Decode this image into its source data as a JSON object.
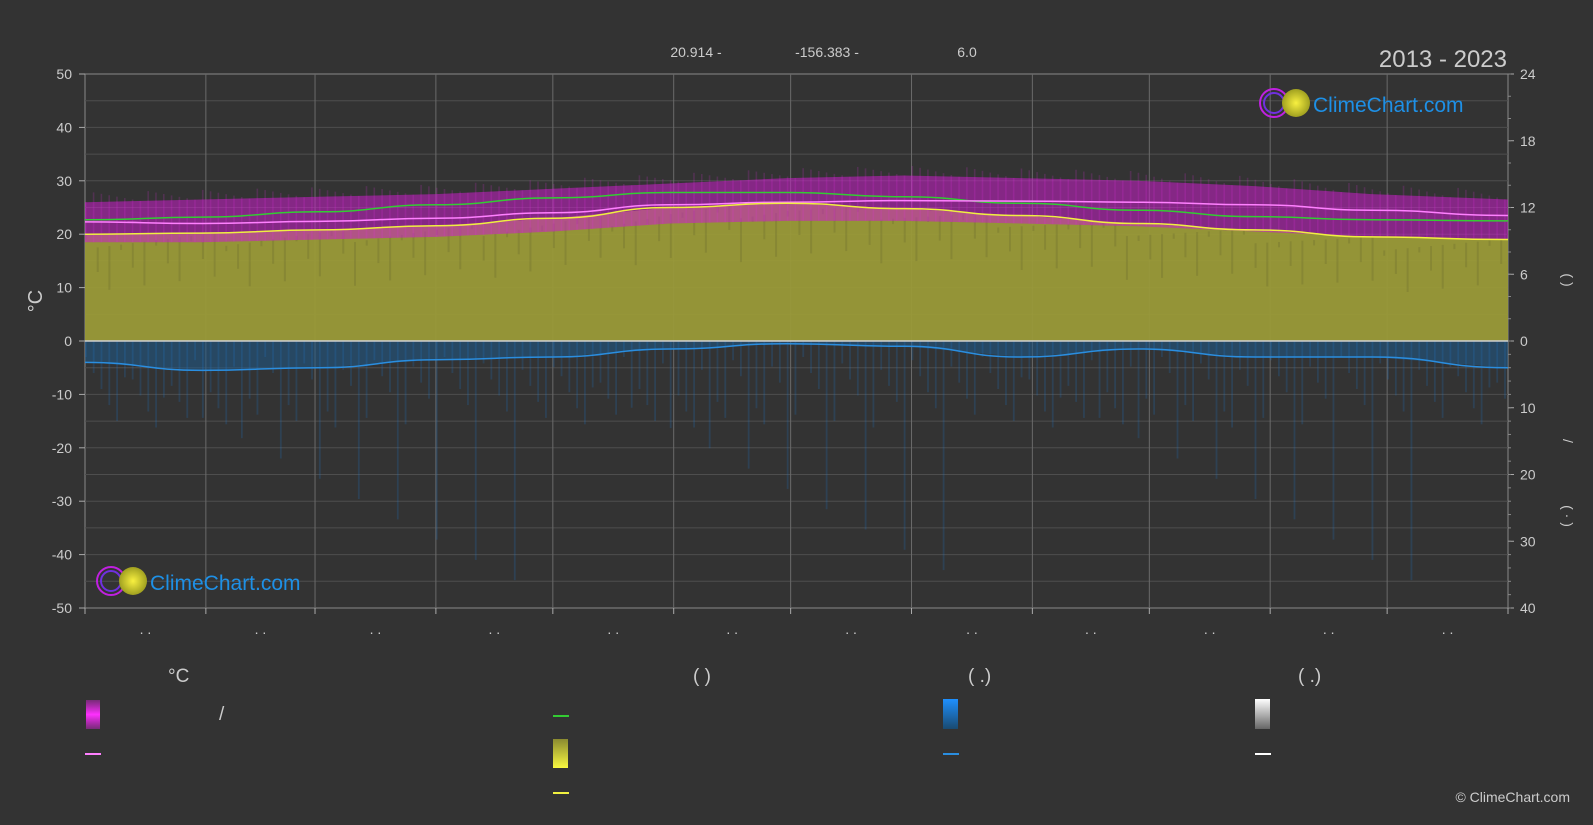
{
  "header": {
    "lat": "20.914 -",
    "lon": "-156.383 -",
    "elev": "6.0",
    "years": "2013 - 2023"
  },
  "brand": {
    "name": "ClimeChart.com",
    "copyright": "© ClimeChart.com"
  },
  "axes": {
    "left_unit": "°C",
    "right_upper_label": "(        )",
    "right_lower_label": "(  ·  )",
    "right_slash": "/"
  },
  "month_labels": [
    ". .",
    ". .",
    ". .",
    ". .",
    ". .",
    ". .",
    ". .",
    ". .",
    ". .",
    ". .",
    ". .",
    ". ."
  ],
  "legend": {
    "col1_title": "°C",
    "col1_slash": "/",
    "col2_title": "(          )",
    "col3_title": "(   .)",
    "col4_title": "(   .)"
  },
  "colors": {
    "background": "#333333",
    "temp_range": "#e020e0",
    "temp_mean": "#ff80ff",
    "sunshine": "#b5b53a",
    "sunshine_line": "#f0f040",
    "daylight": "#33cc33",
    "rain": "#1e78c8",
    "rain_line": "#2a8ee0",
    "snow_line": "#ffffff",
    "brand_blue": "#1e90e6"
  },
  "chart_data": {
    "type": "area",
    "x_axis": {
      "range": [
        0,
        365
      ],
      "labels": [
        ". .",
        ". .",
        ". .",
        ". .",
        ". .",
        ". .",
        ". .",
        ". .",
        ". .",
        ". .",
        ". .",
        ". ."
      ]
    },
    "y_left": {
      "label": "°C",
      "range": [
        -50,
        50
      ],
      "ticks": [
        50,
        40,
        30,
        20,
        10,
        0,
        -10,
        -20,
        -30,
        -40,
        -50
      ]
    },
    "y_right_top": {
      "range": [
        0,
        24
      ],
      "ticks": [
        24,
        18,
        12,
        6,
        0
      ]
    },
    "y_right_bottom": {
      "range": [
        0,
        40
      ],
      "ticks": [
        0,
        10,
        20,
        30,
        40
      ]
    },
    "x_day": [
      0,
      30,
      60,
      90,
      120,
      150,
      180,
      210,
      240,
      270,
      300,
      330,
      365
    ],
    "series": [
      {
        "name": "",
        "kind": "band_max",
        "values": [
          26.0,
          26.5,
          27.0,
          27.5,
          28.5,
          29.5,
          30.5,
          31.0,
          30.5,
          30.0,
          29.0,
          27.5,
          26.5
        ]
      },
      {
        "name": "",
        "kind": "band_min",
        "values": [
          18.5,
          18.5,
          19.0,
          19.5,
          20.5,
          22.0,
          22.5,
          22.5,
          22.0,
          21.5,
          20.5,
          19.5,
          19.0
        ]
      },
      {
        "name": "",
        "kind": "mean_temp",
        "values": [
          22.3,
          22.0,
          22.4,
          23.0,
          24.0,
          25.5,
          26.0,
          26.3,
          26.2,
          26.0,
          25.5,
          24.5,
          23.5
        ]
      },
      {
        "name": "",
        "kind": "daylight",
        "values": [
          22.7,
          23.2,
          24.2,
          25.5,
          26.8,
          27.8,
          27.8,
          27.0,
          25.8,
          24.5,
          23.3,
          22.7,
          22.5
        ]
      },
      {
        "name": "",
        "kind": "sunshine",
        "values": [
          20.0,
          20.2,
          20.8,
          21.6,
          23.0,
          25.0,
          25.8,
          24.8,
          23.5,
          22.0,
          20.8,
          19.5,
          19.0
        ]
      },
      {
        "name": "",
        "kind": "rain",
        "values": [
          -4.0,
          -5.5,
          -5.0,
          -3.5,
          -3.0,
          -1.5,
          -0.5,
          -1.0,
          -3.0,
          -1.5,
          -3.0,
          -3.0,
          -5.0
        ]
      }
    ]
  }
}
